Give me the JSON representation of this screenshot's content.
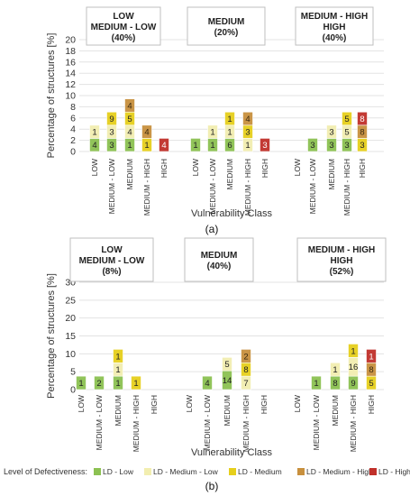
{
  "colors": {
    "LD - Low": "#8cc152",
    "LD - Medium - Low": "#f2eeb0",
    "LD - Medium": "#e6cf1c",
    "LD - Medium - High": "#c8903e",
    "LD - High": "#c0302a"
  },
  "legend": {
    "title": "Level of Defectiveness:",
    "items": [
      "LD - Low",
      "LD - Medium - Low",
      "LD - Medium",
      "LD - Medium - High",
      "LD - High"
    ]
  },
  "chart_data": [
    {
      "type": "bar",
      "stacked": true,
      "panel_label": "(a)",
      "ylabel": "Percentage of structures [%]",
      "xlabel": "Vulnerability Class",
      "ylim": [
        0,
        20
      ],
      "yticks": [
        0,
        2,
        4,
        6,
        8,
        10,
        12,
        14,
        16,
        18,
        20
      ],
      "groups": [
        {
          "label_lines": [
            "LOW",
            "MEDIUM - LOW",
            "(40%)"
          ]
        },
        {
          "label_lines": [
            "MEDIUM",
            "(20%)"
          ]
        },
        {
          "label_lines": [
            "MEDIUM - HIGH",
            "HIGH",
            "(40%)"
          ]
        }
      ],
      "categories": [
        "LOW",
        "MEDIUM - LOW",
        "MEDIUM",
        "MEDIUM - HIGH",
        "HIGH"
      ],
      "bars": [
        {
          "group": 0,
          "category": "LOW",
          "segments": [
            {
              "level": "LD - Low",
              "label": "4"
            },
            {
              "level": "LD - Medium - Low",
              "label": "1"
            }
          ]
        },
        {
          "group": 0,
          "category": "MEDIUM - LOW",
          "segments": [
            {
              "level": "LD - Low",
              "label": "3"
            },
            {
              "level": "LD - Medium - Low",
              "label": "3"
            },
            {
              "level": "LD - Medium",
              "label": "9"
            }
          ]
        },
        {
          "group": 0,
          "category": "MEDIUM",
          "segments": [
            {
              "level": "LD - Low",
              "label": "1"
            },
            {
              "level": "LD - Medium - Low",
              "label": "4"
            },
            {
              "level": "LD - Medium",
              "label": "5"
            },
            {
              "level": "LD - Medium - High",
              "label": "4"
            }
          ]
        },
        {
          "group": 0,
          "category": "MEDIUM - HIGH",
          "segments": [
            {
              "level": "LD - Medium",
              "label": "1"
            },
            {
              "level": "LD - Medium - High",
              "label": "4"
            }
          ]
        },
        {
          "group": 0,
          "category": "HIGH",
          "segments": [
            {
              "level": "LD - High",
              "label": "4"
            }
          ]
        },
        {
          "group": 1,
          "category": "LOW",
          "segments": [
            {
              "level": "LD - Low",
              "label": "1"
            }
          ]
        },
        {
          "group": 1,
          "category": "MEDIUM - LOW",
          "segments": [
            {
              "level": "LD - Low",
              "label": "1"
            },
            {
              "level": "LD - Medium - Low",
              "label": "1"
            }
          ]
        },
        {
          "group": 1,
          "category": "MEDIUM",
          "segments": [
            {
              "level": "LD - Low",
              "label": "6"
            },
            {
              "level": "LD - Medium - Low",
              "label": "1"
            },
            {
              "level": "LD - Medium",
              "label": "1"
            }
          ]
        },
        {
          "group": 1,
          "category": "MEDIUM - HIGH",
          "segments": [
            {
              "level": "LD - Medium - Low",
              "label": "1"
            },
            {
              "level": "LD - Medium",
              "label": "3"
            },
            {
              "level": "LD - Medium - High",
              "label": "4"
            }
          ]
        },
        {
          "group": 1,
          "category": "HIGH",
          "segments": [
            {
              "level": "LD - High",
              "label": "3"
            }
          ]
        },
        {
          "group": 2,
          "category": "LOW",
          "segments": []
        },
        {
          "group": 2,
          "category": "MEDIUM - LOW",
          "segments": [
            {
              "level": "LD - Low",
              "label": "3"
            }
          ]
        },
        {
          "group": 2,
          "category": "MEDIUM",
          "segments": [
            {
              "level": "LD - Low",
              "label": "3"
            },
            {
              "level": "LD - Medium - Low",
              "label": "3"
            }
          ]
        },
        {
          "group": 2,
          "category": "MEDIUM - HIGH",
          "segments": [
            {
              "level": "LD - Low",
              "label": "3"
            },
            {
              "level": "LD - Medium - Low",
              "label": "5"
            },
            {
              "level": "LD - Medium",
              "label": "5"
            }
          ]
        },
        {
          "group": 2,
          "category": "HIGH",
          "segments": [
            {
              "level": "LD - Medium",
              "label": "3"
            },
            {
              "level": "LD - Medium - High",
              "label": "8"
            },
            {
              "level": "LD - High",
              "label": "8"
            }
          ]
        }
      ]
    },
    {
      "type": "bar",
      "stacked": true,
      "panel_label": "(b)",
      "ylabel": "Percentage of structures [%]",
      "xlabel": "Vulnerability Class",
      "ylim": [
        0,
        30
      ],
      "yticks": [
        0,
        5,
        10,
        15,
        20,
        25,
        30
      ],
      "groups": [
        {
          "label_lines": [
            "LOW",
            "MEDIUM - LOW",
            "(8%)"
          ]
        },
        {
          "label_lines": [
            "MEDIUM",
            "(40%)"
          ]
        },
        {
          "label_lines": [
            "MEDIUM - HIGH",
            "HIGH",
            "(52%)"
          ]
        }
      ],
      "categories": [
        "LOW",
        "MEDIUM - LOW",
        "MEDIUM",
        "MEDIUM - HIGH",
        "HIGH"
      ],
      "bars": [
        {
          "group": 0,
          "category": "LOW",
          "segments": [
            {
              "level": "LD - Low",
              "label": "1"
            }
          ]
        },
        {
          "group": 0,
          "category": "MEDIUM - LOW",
          "segments": [
            {
              "level": "LD - Low",
              "label": "2"
            }
          ]
        },
        {
          "group": 0,
          "category": "MEDIUM",
          "segments": [
            {
              "level": "LD - Low",
              "label": "1"
            },
            {
              "level": "LD - Medium - Low",
              "label": "1"
            },
            {
              "level": "LD - Medium",
              "label": "1"
            }
          ]
        },
        {
          "group": 0,
          "category": "MEDIUM - HIGH",
          "segments": [
            {
              "level": "LD - Medium",
              "label": "1"
            }
          ]
        },
        {
          "group": 0,
          "category": "HIGH",
          "segments": []
        },
        {
          "group": 1,
          "category": "LOW",
          "segments": []
        },
        {
          "group": 1,
          "category": "MEDIUM - LOW",
          "segments": [
            {
              "level": "LD - Low",
              "label": "4"
            }
          ]
        },
        {
          "group": 1,
          "category": "MEDIUM",
          "segments": [
            {
              "level": "LD - Low",
              "label": "14"
            },
            {
              "level": "LD - Medium - Low",
              "label": "5"
            }
          ]
        },
        {
          "group": 1,
          "category": "MEDIUM - HIGH",
          "segments": [
            {
              "level": "LD - Medium - Low",
              "label": "7"
            },
            {
              "level": "LD - Medium",
              "label": "8"
            },
            {
              "level": "LD - Medium - High",
              "label": "2"
            }
          ]
        },
        {
          "group": 1,
          "category": "HIGH",
          "segments": []
        },
        {
          "group": 2,
          "category": "LOW",
          "segments": []
        },
        {
          "group": 2,
          "category": "MEDIUM - LOW",
          "segments": [
            {
              "level": "LD - Low",
              "label": "1"
            }
          ]
        },
        {
          "group": 2,
          "category": "MEDIUM",
          "segments": [
            {
              "level": "LD - Low",
              "label": "8"
            },
            {
              "level": "LD - Medium - Low",
              "label": "1"
            }
          ]
        },
        {
          "group": 2,
          "category": "MEDIUM - HIGH",
          "segments": [
            {
              "level": "LD - Low",
              "label": "9"
            },
            {
              "level": "LD - Medium - Low",
              "label": "16"
            },
            {
              "level": "LD - Medium",
              "label": "1"
            }
          ]
        },
        {
          "group": 2,
          "category": "HIGH",
          "segments": [
            {
              "level": "LD - Medium",
              "label": "5"
            },
            {
              "level": "LD - Medium - High",
              "label": "8"
            },
            {
              "level": "LD - High",
              "label": "1"
            }
          ]
        }
      ]
    }
  ]
}
